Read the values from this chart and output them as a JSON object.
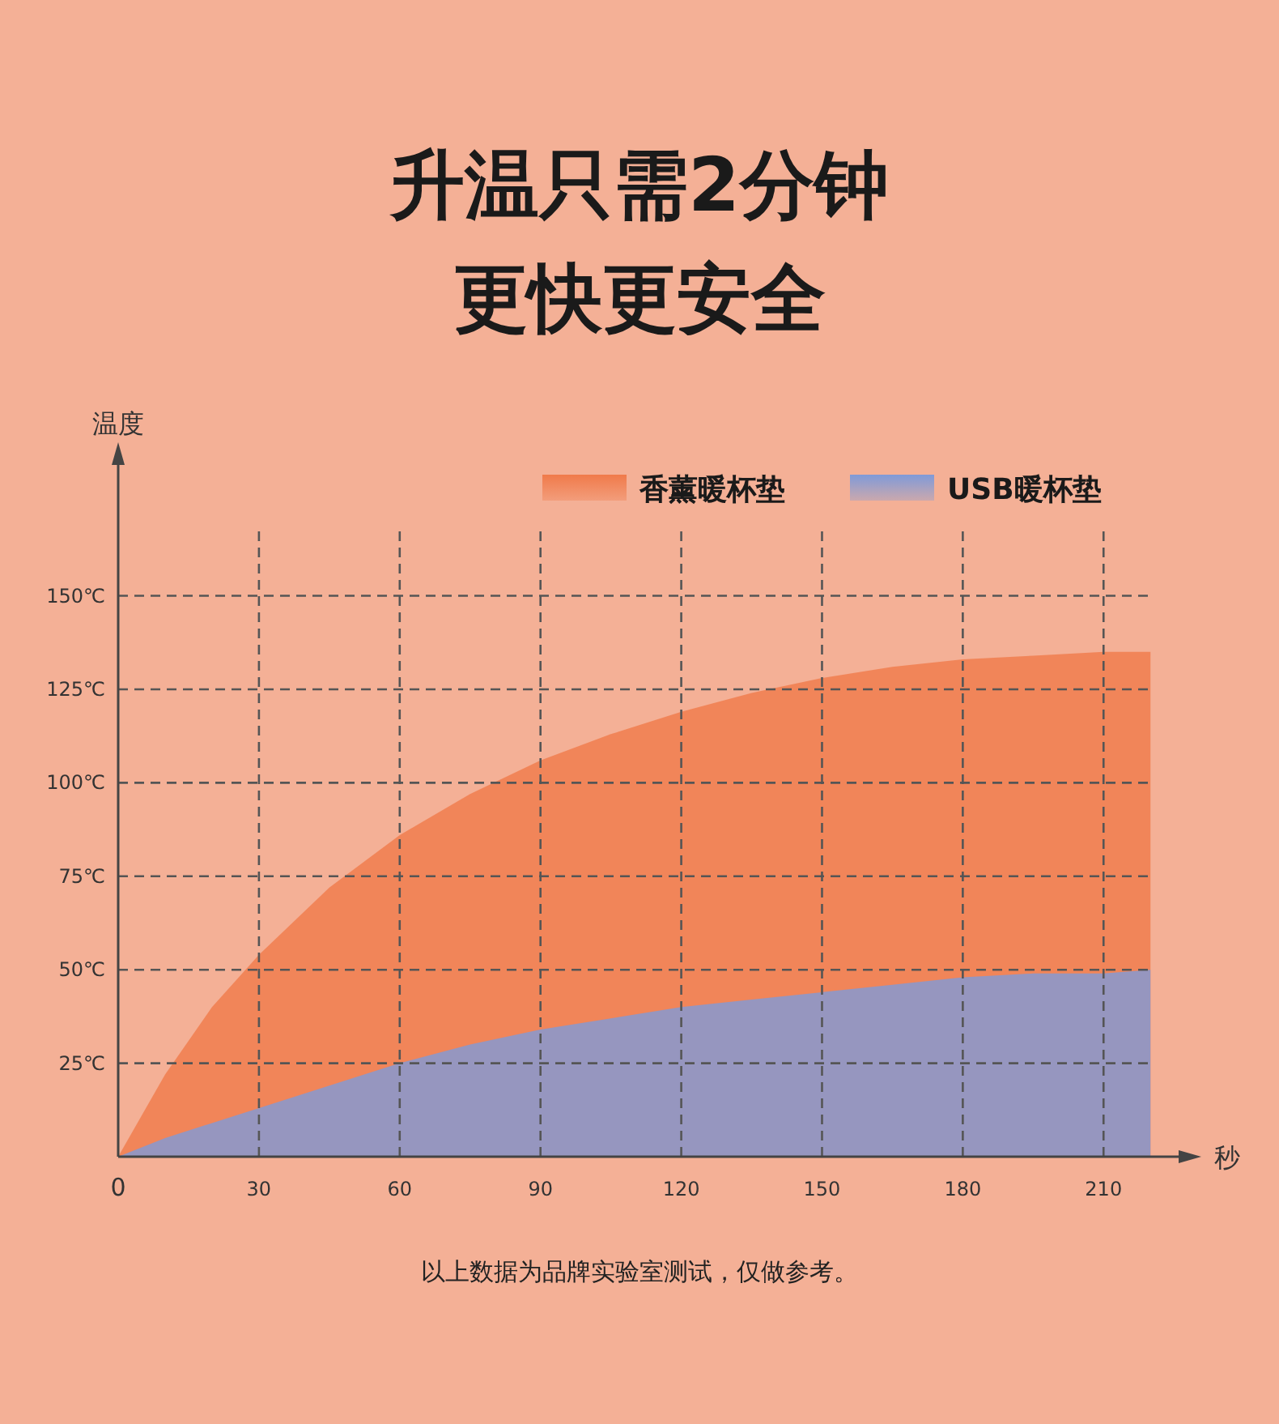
{
  "chart_data": {
    "type": "area",
    "title": "升温只需2分钟",
    "subtitle": "更快更安全",
    "xlabel": "秒",
    "ylabel": "温度",
    "x": [
      0,
      10,
      20,
      30,
      45,
      60,
      75,
      90,
      105,
      120,
      135,
      150,
      165,
      180,
      195,
      210,
      220
    ],
    "series": [
      {
        "name": "香薰暖杯垫",
        "color": "#f07a4a",
        "values": [
          0,
          22,
          40,
          54,
          72,
          86,
          97,
          106,
          113,
          119,
          124,
          128,
          131,
          133,
          134,
          135,
          135
        ]
      },
      {
        "name": "USB暖杯垫",
        "color": "#7f9ad8",
        "values": [
          0,
          5,
          9,
          13,
          19,
          25,
          30,
          34,
          37,
          40,
          42,
          44,
          46,
          48,
          49,
          49,
          50
        ]
      }
    ],
    "xlim": [
      0,
      226
    ],
    "ylim": [
      0,
      185
    ],
    "xticks": [
      {
        "value": 0,
        "label": "0"
      },
      30,
      60,
      90,
      120,
      150,
      180,
      210
    ],
    "yticks": [
      {
        "value": 25,
        "label": "25℃"
      },
      {
        "value": 50,
        "label": "50℃"
      },
      {
        "value": 75,
        "label": "75℃"
      },
      {
        "value": 100,
        "label": "100℃"
      },
      {
        "value": 125,
        "label": "125℃"
      },
      {
        "value": 150,
        "label": "150℃"
      }
    ],
    "grid": true,
    "legend": "top right",
    "annotations": [
      "以上数据为品牌实验室测试，仅做参考。"
    ]
  }
}
